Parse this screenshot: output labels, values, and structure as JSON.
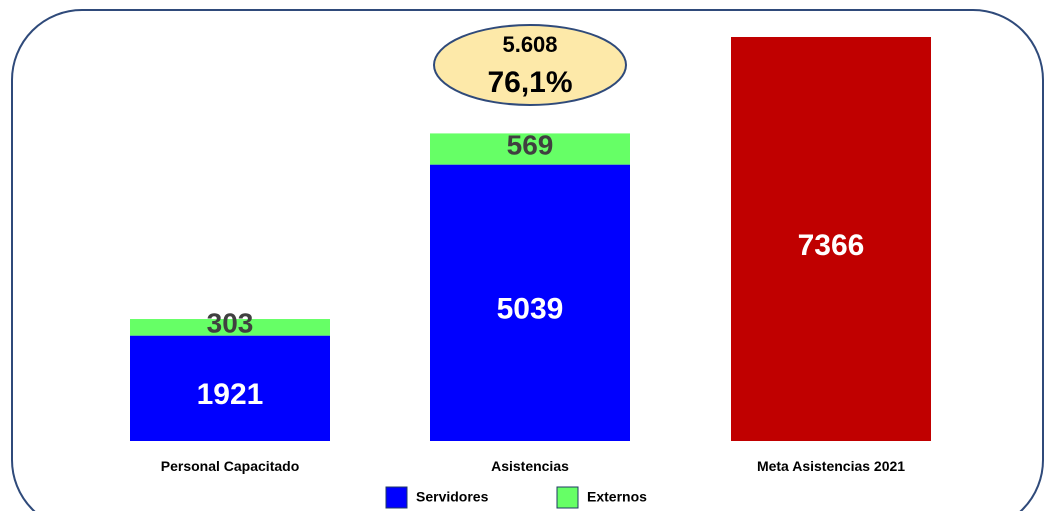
{
  "chart_data": {
    "type": "bar",
    "stacked": true,
    "categories": [
      "Personal Capacitado",
      "Asistencias",
      "Meta Asistencias 2021"
    ],
    "series": [
      {
        "name": "Servidores",
        "color": "#0000ff",
        "values": [
          1921,
          5039,
          null
        ]
      },
      {
        "name": "Externos",
        "color": "#66ff66",
        "values": [
          303,
          569,
          null
        ]
      },
      {
        "color": "#c00000",
        "values": [
          null,
          null,
          7366
        ]
      }
    ],
    "annotation": {
      "lines": [
        "5.608",
        "76,1%"
      ]
    }
  }
}
